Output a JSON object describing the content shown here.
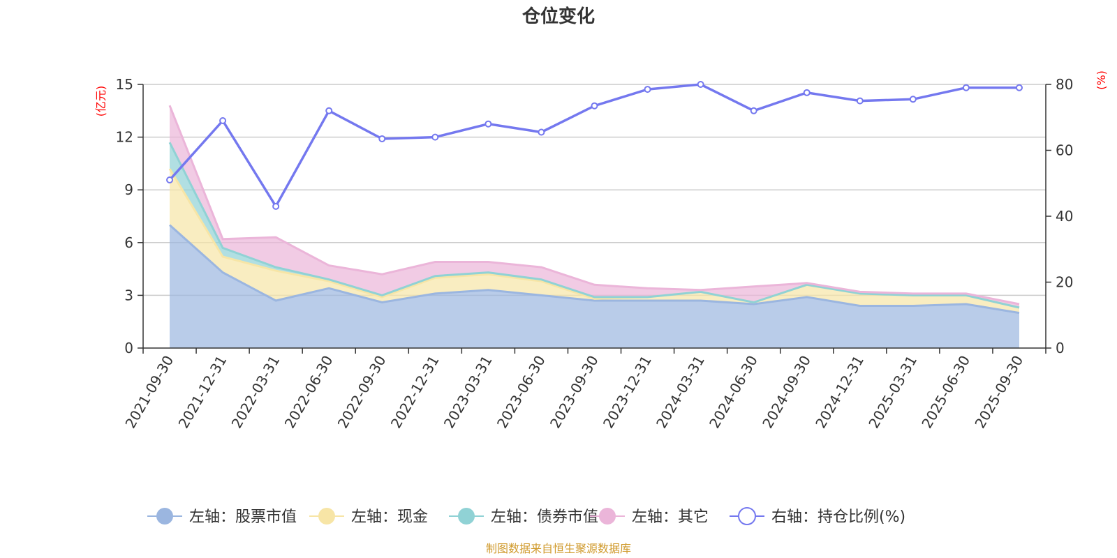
{
  "chart_data": {
    "type": "area",
    "title": "仓位变化",
    "x": [
      "2021-09-30",
      "2021-12-31",
      "2022-03-31",
      "2022-06-30",
      "2022-09-30",
      "2022-12-31",
      "2023-03-31",
      "2023-06-30",
      "2023-09-30",
      "2023-12-31",
      "2024-03-31",
      "2024-06-30",
      "2024-09-30",
      "2024-12-31",
      "2025-03-31",
      "2025-06-30",
      "2025-09-30"
    ],
    "y_left": {
      "unit": "(亿元)",
      "range": [
        0,
        15
      ],
      "ticks": [
        "0",
        "3",
        "6",
        "9",
        "12",
        "15"
      ]
    },
    "y_right": {
      "unit": "(%)",
      "range": [
        0,
        80
      ],
      "ticks": [
        "0",
        "20",
        "40",
        "60",
        "80"
      ]
    },
    "stacked": true,
    "series": [
      {
        "name": "左轴：股票市值",
        "axis": "left",
        "color": "#9bb6e0",
        "values": [
          7.0,
          4.3,
          2.7,
          3.4,
          2.6,
          3.1,
          3.3,
          3.0,
          2.7,
          2.7,
          2.7,
          2.5,
          2.9,
          2.4,
          2.4,
          2.5,
          2.0
        ]
      },
      {
        "name": "左轴：现金",
        "axis": "left",
        "color": "#f7e5a6",
        "values": [
          3.2,
          0.9,
          1.7,
          0.4,
          0.3,
          0.9,
          0.9,
          0.8,
          0.1,
          0.2,
          0.5,
          0.1,
          0.7,
          0.7,
          0.6,
          0.5,
          0.3
        ]
      },
      {
        "name": "左轴：债券市值",
        "axis": "left",
        "color": "#90d2d5",
        "values": [
          1.5,
          0.5,
          0.2,
          0.1,
          0.1,
          0.1,
          0.1,
          0.1,
          0.1,
          0.0,
          0.0,
          0.0,
          0.0,
          0.0,
          0.0,
          0.0,
          0.0
        ]
      },
      {
        "name": "左轴：其它",
        "axis": "left",
        "color": "#ebb5d9",
        "values": [
          2.1,
          0.5,
          1.7,
          0.8,
          1.2,
          0.8,
          0.6,
          0.7,
          0.7,
          0.5,
          0.1,
          0.9,
          0.1,
          0.1,
          0.1,
          0.1,
          0.2
        ]
      },
      {
        "name": "右轴：持仓比例(%)",
        "axis": "right",
        "color": "#7478ef",
        "values": [
          51,
          69,
          43,
          72,
          63.5,
          64,
          68,
          65.5,
          73.5,
          78.5,
          80,
          72,
          77.5,
          75,
          75.5,
          79,
          79
        ]
      }
    ],
    "grid": true,
    "legend_position": "bottom"
  },
  "source_note": "制图数据来自恒生聚源数据库"
}
